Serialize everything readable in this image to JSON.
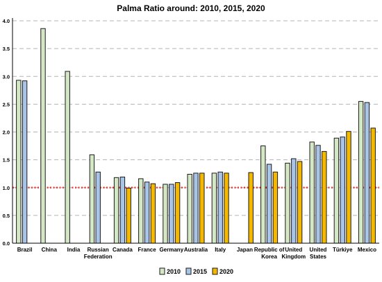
{
  "chart_data": {
    "type": "bar",
    "title": "Palma Ratio around: 2010, 2015, 2020",
    "categories": [
      [
        "Brazil"
      ],
      [
        "China"
      ],
      [
        "India"
      ],
      [
        "Russian",
        "Federation"
      ],
      [
        "Canada"
      ],
      [
        "France"
      ],
      [
        "Germany"
      ],
      [
        "Australia"
      ],
      [
        "Italy"
      ],
      [
        "Japan"
      ],
      [
        "Republic of",
        "Korea"
      ],
      [
        "United",
        "Kingdom"
      ],
      [
        "United",
        "States"
      ],
      [
        "Türkiye"
      ],
      [
        "Mexico"
      ]
    ],
    "series": [
      {
        "name": "2010",
        "color": "#d5e8c5",
        "values": [
          2.93,
          3.86,
          3.09,
          1.59,
          1.18,
          1.16,
          1.06,
          1.24,
          1.26,
          null,
          1.75,
          1.44,
          1.82,
          1.89,
          2.55
        ]
      },
      {
        "name": "2015",
        "color": "#a8c4e6",
        "values": [
          2.92,
          null,
          null,
          1.28,
          1.19,
          1.1,
          1.06,
          1.26,
          1.28,
          null,
          1.42,
          1.52,
          1.76,
          1.91,
          2.53
        ]
      },
      {
        "name": "2020",
        "color": "#f5b800",
        "values": [
          null,
          null,
          null,
          null,
          0.99,
          1.07,
          1.09,
          1.26,
          1.26,
          1.27,
          1.28,
          1.47,
          1.65,
          2.01,
          2.07
        ]
      }
    ],
    "ylim": [
      0.0,
      4.0
    ],
    "yticks": [
      "0.0",
      "0.5",
      "1.0",
      "1.5",
      "2.0",
      "2.5",
      "3.0",
      "3.5",
      "4.0"
    ],
    "reference_line": {
      "value": 1.0,
      "color": "#e8403a",
      "style": "dotted"
    },
    "grid": true,
    "legend_position": "bottom"
  }
}
